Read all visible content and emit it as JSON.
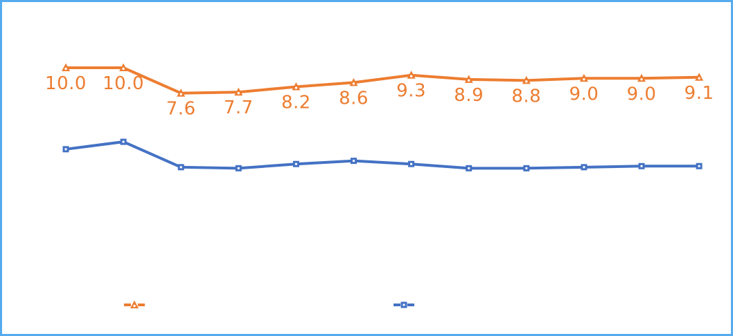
{
  "frame": {
    "background_color": "#ffffff",
    "border_color": "#56aaee"
  },
  "chart_data": {
    "type": "line",
    "title": "",
    "xlabel": "",
    "ylabel": "",
    "axes_visible": false,
    "gridlines": false,
    "x_count": 12,
    "ylim_estimated": [
      0,
      11
    ],
    "series": [
      {
        "name": "orange-triangle-series",
        "color": "#ED7D31",
        "marker": "triangle",
        "marker_center_color": "#ffffff",
        "show_labels": true,
        "values": [
          10.0,
          10.0,
          7.6,
          7.7,
          8.2,
          8.6,
          9.3,
          8.9,
          8.8,
          9.0,
          9.0,
          9.1
        ],
        "data_labels": [
          "10.0",
          "10.0",
          "7.6",
          "7.7",
          "8.2",
          "8.6",
          "9.3",
          "8.9",
          "8.8",
          "9.0",
          "9.0",
          "9.1"
        ]
      },
      {
        "name": "blue-square-series",
        "color": "#4472C4",
        "marker": "square",
        "marker_center_color": "#ffffff",
        "show_labels": false,
        "values_estimated": true,
        "values": [
          2.3,
          3.0,
          0.6,
          0.5,
          0.9,
          1.2,
          0.9,
          0.5,
          0.5,
          0.6,
          0.7,
          0.7
        ]
      }
    ],
    "legend": {
      "position": "bottom",
      "entries": [
        {
          "series": "orange-triangle-series",
          "marker": "triangle",
          "color": "#ED7D31",
          "label": ""
        },
        {
          "series": "blue-square-series",
          "marker": "square",
          "color": "#4472C4",
          "label": ""
        }
      ]
    }
  }
}
